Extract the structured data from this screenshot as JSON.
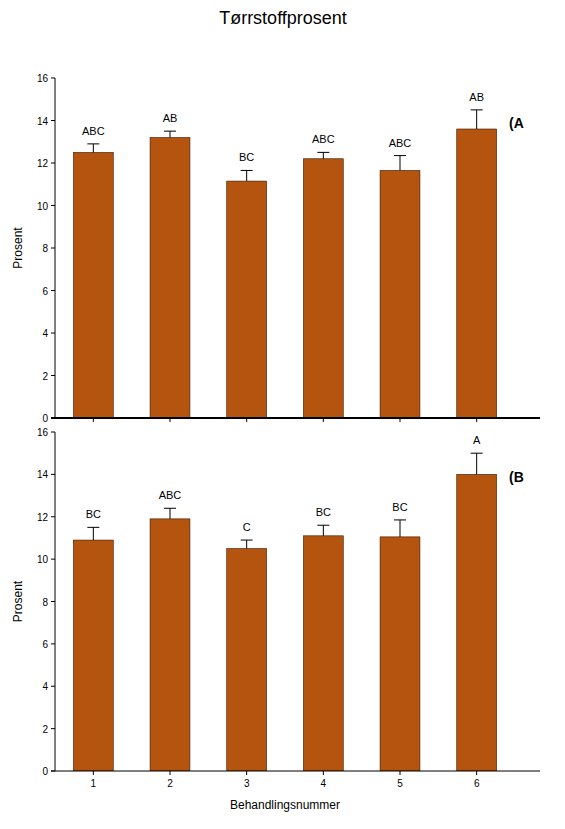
{
  "chart_data": [
    {
      "type": "bar",
      "title": "Tørrstoffprosent",
      "subtitle": "(A",
      "y_label": "Prosent",
      "categories": [
        "1",
        "2",
        "3",
        "4",
        "5",
        "6"
      ],
      "values": [
        12.5,
        13.2,
        11.15,
        12.2,
        11.65,
        13.6
      ],
      "errors": [
        0.4,
        0.3,
        0.5,
        0.3,
        0.7,
        0.9
      ],
      "annotations": [
        "ABC",
        "AB",
        "BC",
        "ABC",
        "ABC",
        "AB"
      ],
      "color": "#b4540f",
      "ylim": [
        0,
        16
      ],
      "yticks": [
        0,
        2,
        4,
        6,
        8,
        10,
        12,
        14,
        16
      ],
      "grid": false,
      "tick_labels": "y"
    },
    {
      "type": "bar",
      "subtitle": "(B",
      "y_label": "Prosent",
      "x_label": "Behandlingsnummer",
      "categories": [
        "1",
        "2",
        "3",
        "4",
        "5",
        "6"
      ],
      "values": [
        10.9,
        11.9,
        10.5,
        11.1,
        11.05,
        14.0
      ],
      "errors": [
        0.6,
        0.5,
        0.4,
        0.5,
        0.8,
        1.0
      ],
      "annotations": [
        "BC",
        "ABC",
        "C",
        "BC",
        "BC",
        "A"
      ],
      "color": "#b4540f",
      "ylim": [
        0,
        16
      ],
      "yticks": [
        0,
        2,
        4,
        6,
        8,
        10,
        12,
        14,
        16
      ],
      "grid": false
    }
  ]
}
